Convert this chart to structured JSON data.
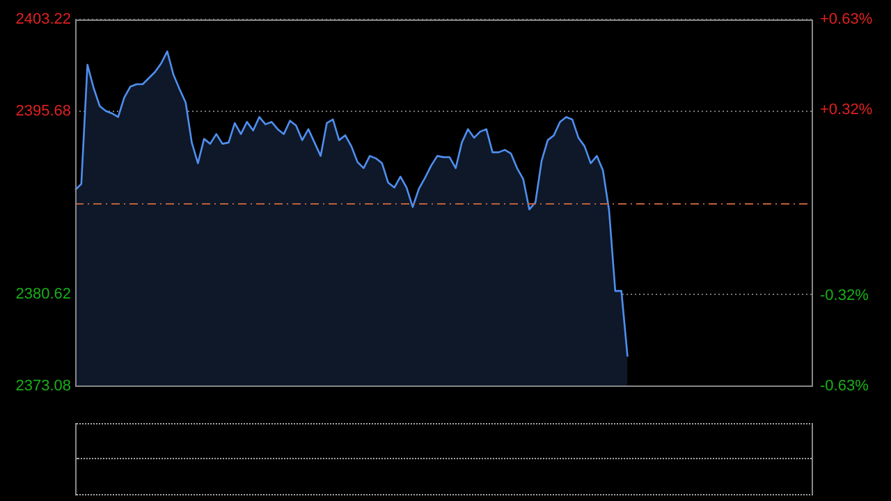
{
  "chart_data": {
    "type": "area",
    "categories": [
      null,
      null,
      null,
      null,
      null,
      null,
      null,
      null,
      null,
      null,
      null,
      null,
      null,
      null,
      null,
      null,
      null,
      null,
      null,
      null,
      null,
      null,
      null,
      null,
      null,
      null,
      null,
      null,
      null,
      null,
      null,
      null,
      null,
      null,
      null,
      null,
      null,
      null,
      null,
      null,
      null,
      null,
      null,
      null,
      null,
      null,
      null,
      null,
      null,
      null,
      null,
      null,
      null,
      null,
      null,
      null,
      null,
      null,
      null,
      null,
      null,
      null,
      null,
      null,
      null,
      null,
      null,
      null,
      null,
      null,
      null,
      null,
      null,
      null,
      null,
      null,
      null,
      null,
      null,
      null,
      null,
      null,
      null,
      null,
      null,
      null,
      null,
      null,
      null,
      null,
      null,
      null,
      null,
      null,
      null,
      null,
      null,
      null,
      null,
      null,
      null,
      null,
      null,
      null,
      null,
      null,
      null,
      null,
      null,
      null,
      null,
      null,
      null,
      null,
      null,
      null,
      null,
      null,
      null,
      null,
      null
    ],
    "series": [
      {
        "color": "#4f8fef",
        "values": [
          2389.2,
          2389.7,
          2399.5,
          2397.6,
          2396.1,
          2395.7,
          2395.5,
          2395.2,
          2396.8,
          2397.7,
          2397.9,
          2397.9,
          2398.4,
          2398.9,
          2399.6,
          2400.6,
          2398.7,
          2397.5,
          2396.4,
          2393.1,
          2391.4,
          2393.4,
          2393.0,
          2393.8,
          2393.0,
          2393.1,
          2394.7,
          2393.8,
          2394.8,
          2394.1,
          2395.2,
          2394.6,
          2394.8,
          2394.2,
          2393.8,
          2394.9,
          2394.5,
          2393.3,
          2394.2,
          2393.1,
          2392.0,
          2394.7,
          2395.0,
          2393.3,
          2393.7,
          2392.8,
          2391.5,
          2391.0,
          2392.0,
          2391.8,
          2391.4,
          2389.8,
          2389.4,
          2390.3,
          2389.4,
          2387.8,
          2389.3,
          2390.2,
          2391.2,
          2392.0,
          2391.9,
          2391.9,
          2391.0,
          2393.1,
          2394.2,
          2393.5,
          2394.0,
          2394.2,
          2392.3,
          2392.3,
          2392.5,
          2392.2,
          2391.0,
          2390.1,
          2387.6,
          2388.2,
          2391.6,
          2393.3,
          2393.7,
          2394.8,
          2395.2,
          2395.0,
          2393.5,
          2392.8,
          2391.4,
          2392.0,
          2390.8,
          2387.5,
          2380.9,
          2380.9,
          2375.5,
          null,
          null,
          null,
          null,
          null,
          null,
          null,
          null,
          null,
          null,
          null,
          null,
          null,
          null,
          null,
          null,
          null,
          null,
          null,
          null,
          null,
          null,
          null,
          null,
          null,
          null,
          null,
          null,
          null,
          null
        ]
      }
    ],
    "ylim": [
      2373.08,
      2403.22
    ],
    "yticks": [
      2373.08,
      2380.62,
      2395.68,
      2403.22
    ],
    "y2lim": [
      -0.63,
      0.63
    ],
    "y2ticks": [
      {
        "value": -0.63,
        "label": "-0.63%"
      },
      {
        "value": -0.32,
        "label": "-0.32%"
      },
      {
        "value": 0.32,
        "label": "+0.32%"
      },
      {
        "value": 0.63,
        "label": "+0.63%"
      }
    ],
    "ref_lines": [
      {
        "axis": "y",
        "value": 2388.15,
        "color": "#c0603a",
        "line_style": "dashed"
      }
    ],
    "grid": "y",
    "legend": false,
    "tick_labels": "y",
    "marker": "none",
    "line_style": "solid"
  }
}
